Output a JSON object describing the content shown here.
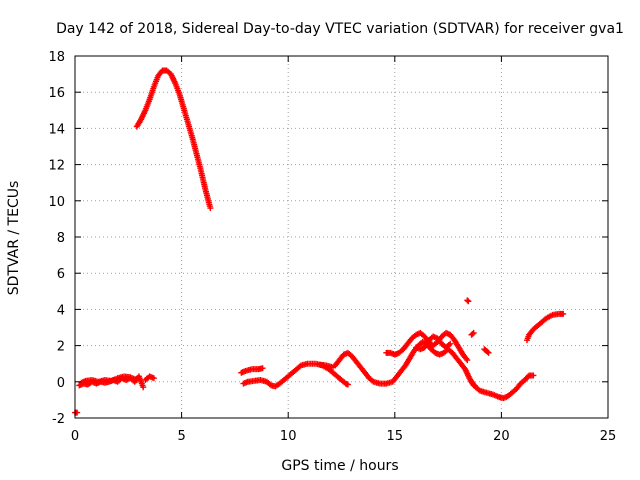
{
  "chart_data": {
    "type": "scatter",
    "title": "Day 142 of 2018, Sidereal Day-to-day VTEC variation (SDTVAR) for receiver gva1",
    "xlabel": "GPS time / hours",
    "ylabel": "SDTVAR / TECUs",
    "xlim": [
      0,
      25
    ],
    "ylim": [
      -2,
      18
    ],
    "xticks": [
      0,
      5,
      10,
      15,
      20,
      25
    ],
    "yticks": [
      -2,
      0,
      2,
      4,
      6,
      8,
      10,
      12,
      14,
      16,
      18
    ],
    "grid": true,
    "marker": "+",
    "series": [
      {
        "name": "SDTVAR",
        "color": "#ff0000",
        "segments": [
          [
            [
              0.0,
              -1.7
            ],
            [
              0.1,
              -1.7
            ]
          ],
          [
            [
              0.2,
              -0.2
            ],
            [
              0.4,
              -0.1
            ],
            [
              0.6,
              -0.15
            ],
            [
              0.8,
              0.0
            ],
            [
              1.0,
              -0.1
            ],
            [
              1.2,
              0.0
            ],
            [
              1.4,
              -0.05
            ],
            [
              1.6,
              0.0
            ],
            [
              1.8,
              0.1
            ],
            [
              2.0,
              0.0
            ],
            [
              2.2,
              0.2
            ],
            [
              2.4,
              0.1
            ],
            [
              2.6,
              0.2
            ],
            [
              2.8,
              0.0
            ],
            [
              3.0,
              0.3
            ],
            [
              3.2,
              -0.3
            ]
          ],
          [
            [
              0.3,
              -0.05
            ],
            [
              0.5,
              0.05
            ],
            [
              0.8,
              0.1
            ],
            [
              1.1,
              0.0
            ],
            [
              1.4,
              0.1
            ],
            [
              1.7,
              0.05
            ],
            [
              2.0,
              0.2
            ],
            [
              2.3,
              0.3
            ],
            [
              2.6,
              0.25
            ],
            [
              2.9,
              0.1
            ]
          ],
          [
            [
              3.3,
              0.1
            ],
            [
              3.5,
              0.3
            ],
            [
              3.7,
              0.2
            ]
          ],
          [
            [
              2.9,
              14.1
            ],
            [
              3.1,
              14.5
            ],
            [
              3.3,
              15.0
            ],
            [
              3.5,
              15.6
            ],
            [
              3.7,
              16.3
            ],
            [
              3.9,
              16.9
            ],
            [
              4.1,
              17.2
            ],
            [
              4.3,
              17.2
            ],
            [
              4.5,
              17.0
            ],
            [
              4.7,
              16.5
            ],
            [
              4.9,
              15.9
            ],
            [
              5.1,
              15.1
            ],
            [
              5.3,
              14.3
            ],
            [
              5.5,
              13.5
            ],
            [
              5.7,
              12.6
            ],
            [
              5.9,
              11.7
            ],
            [
              6.1,
              10.7
            ],
            [
              6.3,
              9.8
            ],
            [
              6.35,
              9.6
            ]
          ],
          [
            [
              7.8,
              0.5
            ],
            [
              8.0,
              0.6
            ],
            [
              8.3,
              0.7
            ],
            [
              8.6,
              0.7
            ],
            [
              8.8,
              0.75
            ]
          ],
          [
            [
              7.9,
              -0.1
            ],
            [
              8.1,
              0.0
            ],
            [
              8.4,
              0.05
            ],
            [
              8.7,
              0.1
            ],
            [
              9.0,
              0.0
            ],
            [
              9.2,
              -0.2
            ],
            [
              9.4,
              -0.25
            ],
            [
              9.6,
              -0.1
            ],
            [
              9.8,
              0.1
            ],
            [
              10.0,
              0.3
            ],
            [
              10.3,
              0.6
            ],
            [
              10.6,
              0.9
            ],
            [
              10.9,
              1.0
            ],
            [
              11.3,
              1.0
            ],
            [
              11.6,
              0.9
            ],
            [
              11.9,
              0.7
            ],
            [
              12.2,
              0.4
            ],
            [
              12.5,
              0.1
            ],
            [
              12.7,
              -0.1
            ],
            [
              12.8,
              -0.15
            ]
          ],
          [
            [
              11.5,
              0.95
            ],
            [
              11.8,
              0.9
            ],
            [
              12.1,
              0.8
            ]
          ],
          [
            [
              12.2,
              0.9
            ],
            [
              12.4,
              1.2
            ],
            [
              12.6,
              1.5
            ],
            [
              12.8,
              1.6
            ],
            [
              13.0,
              1.4
            ],
            [
              13.2,
              1.1
            ],
            [
              13.4,
              0.8
            ],
            [
              13.6,
              0.5
            ],
            [
              13.8,
              0.2
            ],
            [
              14.0,
              0.0
            ],
            [
              14.3,
              -0.1
            ],
            [
              14.6,
              -0.1
            ],
            [
              14.9,
              0.0
            ],
            [
              15.1,
              0.3
            ],
            [
              15.3,
              0.6
            ],
            [
              15.5,
              0.9
            ],
            [
              15.7,
              1.3
            ],
            [
              15.9,
              1.7
            ],
            [
              16.1,
              2.0
            ],
            [
              16.3,
              2.2
            ],
            [
              16.5,
              2.1
            ],
            [
              16.7,
              1.8
            ],
            [
              16.9,
              1.6
            ],
            [
              17.1,
              1.5
            ],
            [
              17.3,
              1.6
            ],
            [
              17.5,
              1.8
            ],
            [
              17.7,
              1.6
            ],
            [
              17.9,
              1.3
            ],
            [
              18.1,
              1.0
            ],
            [
              18.3,
              0.7
            ],
            [
              18.5,
              0.2
            ],
            [
              18.7,
              -0.2
            ]
          ],
          [
            [
              14.6,
              1.6
            ],
            [
              14.8,
              1.6
            ],
            [
              15.0,
              1.5
            ],
            [
              15.2,
              1.6
            ],
            [
              15.4,
              1.8
            ],
            [
              15.6,
              2.1
            ],
            [
              15.8,
              2.4
            ],
            [
              16.0,
              2.6
            ],
            [
              16.2,
              2.7
            ],
            [
              16.4,
              2.5
            ],
            [
              16.6,
              2.2
            ],
            [
              16.8,
              2.0
            ],
            [
              17.0,
              2.2
            ],
            [
              17.2,
              2.5
            ],
            [
              17.4,
              2.7
            ],
            [
              17.6,
              2.6
            ],
            [
              17.8,
              2.3
            ],
            [
              18.0,
              1.9
            ],
            [
              18.2,
              1.5
            ],
            [
              18.4,
              1.2
            ]
          ],
          [
            [
              16.0,
              1.9
            ],
            [
              16.2,
              1.8
            ],
            [
              16.4,
              1.9
            ],
            [
              16.6,
              2.3
            ],
            [
              16.8,
              2.5
            ],
            [
              17.0,
              2.4
            ],
            [
              17.2,
              2.1
            ],
            [
              17.4,
              1.9
            ],
            [
              17.6,
              2.1
            ]
          ],
          [
            [
              18.4,
              4.5
            ],
            [
              18.45,
              4.45
            ]
          ],
          [
            [
              18.6,
              2.6
            ],
            [
              18.7,
              2.7
            ]
          ],
          [
            [
              19.2,
              1.8
            ],
            [
              19.3,
              1.7
            ],
            [
              19.4,
              1.6
            ]
          ],
          [
            [
              18.6,
              0.0
            ],
            [
              18.8,
              -0.3
            ],
            [
              19.0,
              -0.5
            ],
            [
              19.3,
              -0.6
            ],
            [
              19.6,
              -0.7
            ],
            [
              19.9,
              -0.85
            ],
            [
              20.1,
              -0.9
            ],
            [
              20.3,
              -0.8
            ],
            [
              20.5,
              -0.6
            ],
            [
              20.7,
              -0.4
            ],
            [
              20.9,
              -0.1
            ],
            [
              21.1,
              0.1
            ],
            [
              21.3,
              0.35
            ],
            [
              21.5,
              0.35
            ]
          ],
          [
            [
              21.2,
              2.3
            ],
            [
              21.3,
              2.6
            ],
            [
              21.5,
              2.9
            ],
            [
              21.8,
              3.2
            ],
            [
              22.1,
              3.5
            ],
            [
              22.4,
              3.7
            ],
            [
              22.7,
              3.75
            ],
            [
              22.9,
              3.75
            ]
          ]
        ]
      }
    ]
  }
}
